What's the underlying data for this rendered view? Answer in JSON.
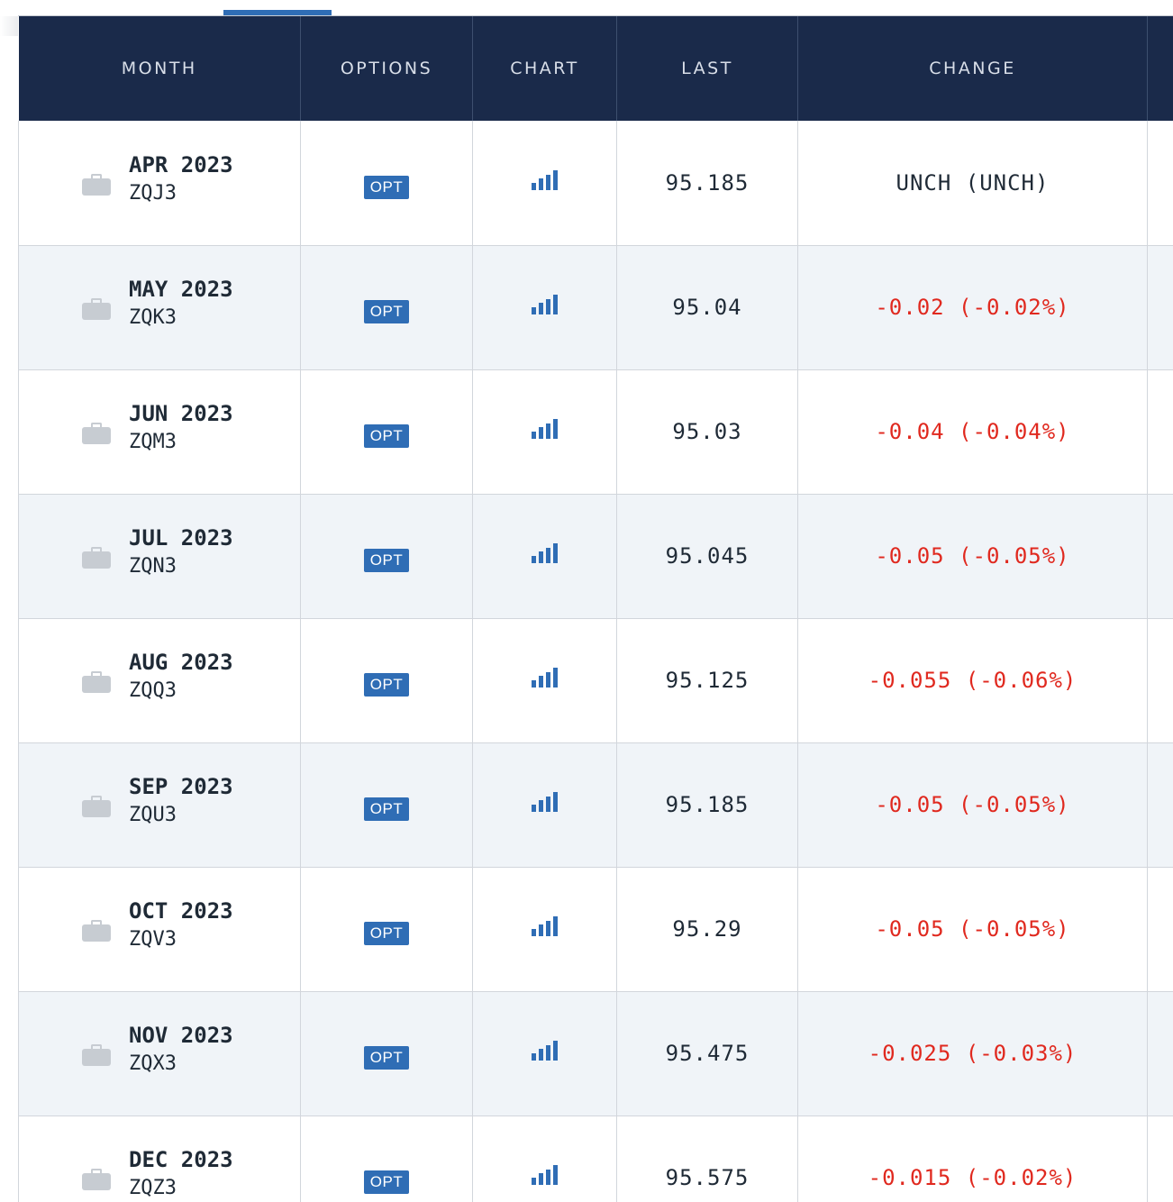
{
  "table": {
    "headers": {
      "month": "MONTH",
      "options": "OPTIONS",
      "chart": "CHART",
      "last": "LAST",
      "change": "CHANGE"
    },
    "rows": [
      {
        "month": "APR 2023",
        "code": "ZQJ3",
        "opt": "OPT",
        "last": "95.185",
        "change": "UNCH (UNCH)",
        "direction": "unch"
      },
      {
        "month": "MAY 2023",
        "code": "ZQK3",
        "opt": "OPT",
        "last": "95.04",
        "change": "-0.02 (-0.02%)",
        "direction": "down"
      },
      {
        "month": "JUN 2023",
        "code": "ZQM3",
        "opt": "OPT",
        "last": "95.03",
        "change": "-0.04 (-0.04%)",
        "direction": "down"
      },
      {
        "month": "JUL 2023",
        "code": "ZQN3",
        "opt": "OPT",
        "last": "95.045",
        "change": "-0.05 (-0.05%)",
        "direction": "down"
      },
      {
        "month": "AUG 2023",
        "code": "ZQQ3",
        "opt": "OPT",
        "last": "95.125",
        "change": "-0.055 (-0.06%)",
        "direction": "down"
      },
      {
        "month": "SEP 2023",
        "code": "ZQU3",
        "opt": "OPT",
        "last": "95.185",
        "change": "-0.05 (-0.05%)",
        "direction": "down"
      },
      {
        "month": "OCT 2023",
        "code": "ZQV3",
        "opt": "OPT",
        "last": "95.29",
        "change": "-0.05 (-0.05%)",
        "direction": "down"
      },
      {
        "month": "NOV 2023",
        "code": "ZQX3",
        "opt": "OPT",
        "last": "95.475",
        "change": "-0.025 (-0.03%)",
        "direction": "down"
      },
      {
        "month": "DEC 2023",
        "code": "ZQZ3",
        "opt": "OPT",
        "last": "95.575",
        "change": "-0.015 (-0.02%)",
        "direction": "down"
      }
    ]
  },
  "icons": {
    "row_icon": "briefcase-icon",
    "chart_icon": "bar-chart-icon"
  },
  "colors": {
    "header_bg": "#1a2a4a",
    "accent": "#2f6db5",
    "negative": "#e0291f",
    "row_alt": "#f0f4f8"
  }
}
